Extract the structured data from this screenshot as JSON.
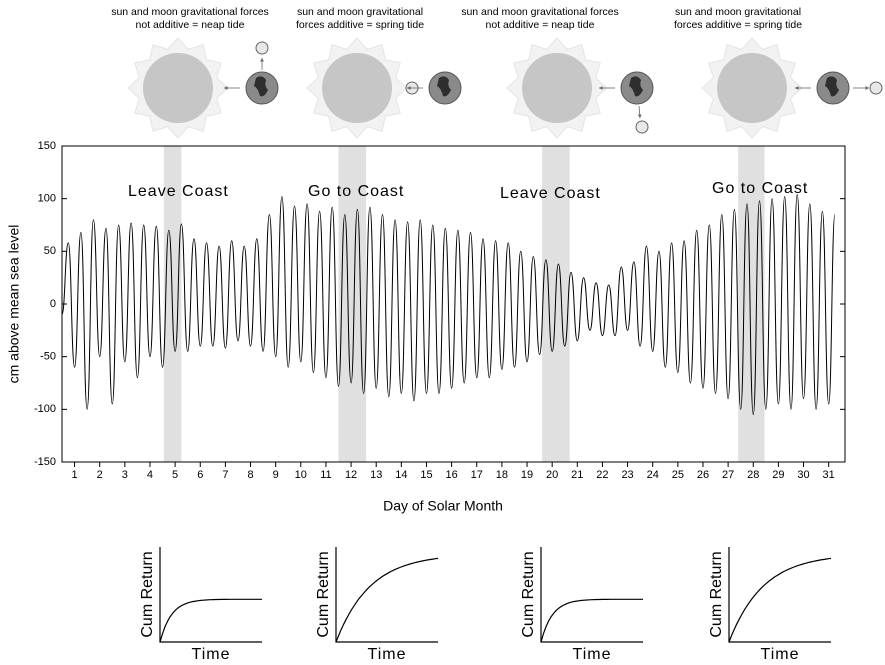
{
  "chart_data": {
    "type": "line",
    "y_label": "cm above mean sea level",
    "x_label": "Day of Solar Month",
    "xlim": [
      0.5,
      31.65
    ],
    "ylim": [
      -150,
      150
    ],
    "yticks": [
      -150,
      -100,
      -50,
      0,
      50,
      100,
      150
    ],
    "xticks": [
      1,
      2,
      3,
      4,
      5,
      6,
      7,
      8,
      9,
      10,
      11,
      12,
      13,
      14,
      15,
      16,
      17,
      18,
      19,
      20,
      21,
      22,
      23,
      24,
      25,
      26,
      27,
      28,
      29,
      30,
      31
    ],
    "bands": [
      [
        4.55,
        5.25
      ],
      [
        11.5,
        12.6
      ],
      [
        19.6,
        20.7
      ],
      [
        27.4,
        28.45
      ]
    ],
    "band_color": "#e0e0e0",
    "annotations": [
      {
        "text": "Leave Coast"
      },
      {
        "text": "Go to Coast"
      },
      {
        "text": "Leave Coast"
      },
      {
        "text": "Go to Coast"
      }
    ],
    "x": [
      0.5,
      0.75,
      1,
      1.25,
      1.5,
      1.75,
      2,
      2.25,
      2.5,
      2.75,
      3,
      3.25,
      3.5,
      3.75,
      4,
      4.25,
      4.5,
      4.75,
      5,
      5.25,
      5.5,
      5.75,
      6,
      6.25,
      6.5,
      6.75,
      7,
      7.25,
      7.5,
      7.75,
      8,
      8.25,
      8.5,
      8.75,
      9,
      9.25,
      9.5,
      9.75,
      10,
      10.25,
      10.5,
      10.75,
      11,
      11.25,
      11.5,
      11.75,
      12,
      12.25,
      12.5,
      12.75,
      13,
      13.25,
      13.5,
      13.75,
      14,
      14.25,
      14.5,
      14.75,
      15,
      15.25,
      15.5,
      15.75,
      16,
      16.25,
      16.5,
      16.75,
      17,
      17.25,
      17.5,
      17.75,
      18,
      18.25,
      18.5,
      18.75,
      19,
      19.25,
      19.5,
      19.75,
      20,
      20.25,
      20.5,
      20.75,
      21,
      21.25,
      21.5,
      21.75,
      22,
      22.25,
      22.5,
      22.75,
      23,
      23.25,
      23.5,
      23.75,
      24,
      24.25,
      24.5,
      24.75,
      25,
      25.25,
      25.5,
      25.75,
      26,
      26.25,
      26.5,
      26.75,
      27,
      27.25,
      27.5,
      27.75,
      28,
      28.25,
      28.5,
      28.75,
      29,
      29.25,
      29.5,
      29.75,
      30,
      30.25,
      30.5,
      30.75,
      31,
      31.25
    ],
    "series": [
      {
        "color": "#000000",
        "values": [
          -10,
          58,
          -60,
          68,
          -100,
          80,
          -50,
          72,
          -95,
          75,
          -55,
          77,
          -70,
          75,
          -50,
          74,
          -60,
          70,
          -45,
          76,
          -45,
          62,
          -40,
          58,
          -40,
          55,
          -42,
          60,
          -35,
          55,
          -40,
          62,
          -45,
          85,
          -50,
          102,
          -60,
          93,
          -55,
          95,
          -65,
          88,
          -70,
          92,
          -78,
          85,
          -75,
          90,
          -85,
          92,
          -80,
          85,
          -88,
          80,
          -85,
          78,
          -92,
          80,
          -85,
          75,
          -85,
          72,
          -80,
          70,
          -75,
          68,
          -70,
          62,
          -70,
          60,
          -62,
          58,
          -60,
          50,
          -55,
          45,
          -48,
          42,
          -45,
          38,
          -40,
          30,
          -35,
          25,
          -25,
          20,
          -30,
          18,
          -30,
          35,
          -25,
          40,
          -40,
          55,
          -45,
          50,
          -60,
          58,
          -65,
          60,
          -75,
          70,
          -80,
          75,
          -85,
          85,
          -90,
          90,
          -100,
          95,
          -105,
          98,
          -100,
          100,
          -95,
          102,
          -100,
          104,
          -90,
          95,
          -100,
          88,
          -95,
          85
        ]
      }
    ]
  },
  "illustrations": [
    {
      "caption": [
        "sun and moon gravitational forces",
        "not additive = neap tide"
      ]
    },
    {
      "caption": [
        "sun and moon gravitational",
        "forces additive = spring tide"
      ]
    },
    {
      "caption": [
        "sun and moon gravitational forces",
        "not additive = neap tide"
      ]
    },
    {
      "caption": [
        "sun and moon gravitational",
        "forces additive = spring tide"
      ]
    }
  ],
  "return_charts": [
    {
      "y_label": "Cum Return",
      "x_label": "Time"
    },
    {
      "y_label": "Cum Return",
      "x_label": "Time"
    },
    {
      "y_label": "Cum Return",
      "x_label": "Time"
    },
    {
      "y_label": "Cum Return",
      "x_label": "Time"
    }
  ]
}
